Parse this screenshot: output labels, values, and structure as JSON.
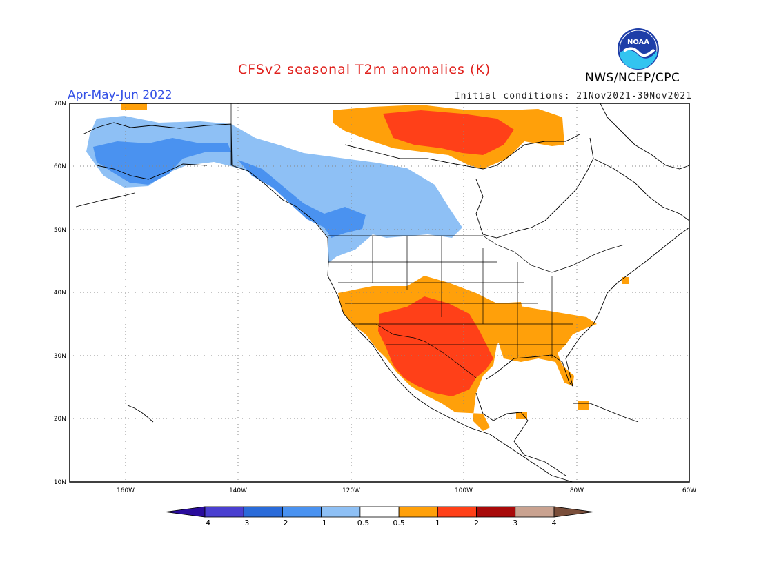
{
  "header": {
    "title": "CFSv2 seasonal T2m anomalies (K)",
    "season": "Apr-May-Jun 2022",
    "initial_conditions": "Initial conditions: 21Nov2021-30Nov2021",
    "organization": "NWS/NCEP/CPC",
    "logo_text": "NOAA"
  },
  "map": {
    "projection": "lat-lon",
    "lon_range": [
      -170,
      -60
    ],
    "lat_range": [
      10,
      70
    ],
    "lat_ticks": [
      {
        "value": 70,
        "label": "70N"
      },
      {
        "value": 60,
        "label": "60N"
      },
      {
        "value": 50,
        "label": "50N"
      },
      {
        "value": 40,
        "label": "40N"
      },
      {
        "value": 30,
        "label": "30N"
      },
      {
        "value": 20,
        "label": "20N"
      },
      {
        "value": 10,
        "label": "10N"
      }
    ],
    "lon_ticks": [
      {
        "value": -160,
        "label": "160W"
      },
      {
        "value": -140,
        "label": "140W"
      },
      {
        "value": -120,
        "label": "120W"
      },
      {
        "value": -100,
        "label": "100W"
      },
      {
        "value": -80,
        "label": "80W"
      },
      {
        "value": -60,
        "label": "60W"
      }
    ],
    "grid": "dotted"
  },
  "colorbar": {
    "labels": [
      "-4",
      "-3",
      "-2",
      "-1",
      "-0.5",
      "0.5",
      "1",
      "2",
      "3",
      "4"
    ],
    "colors": [
      "#2a0c9c",
      "#4a3fd0",
      "#2a6bd9",
      "#4a92f0",
      "#8ec0f5",
      "#ffffff",
      "#ffa00a",
      "#ff4018",
      "#a80a0a",
      "#c9a290",
      "#7a4e3a"
    ]
  },
  "anomaly_regions": [
    {
      "name": "alaska-cold",
      "class": "-1 to -0.5",
      "color": "#8ec0f5"
    },
    {
      "name": "alaska-colder",
      "class": "-2 to -1",
      "color": "#4a92f0"
    },
    {
      "name": "canada-west-cold",
      "class": "-1 to -0.5",
      "color": "#8ec0f5"
    },
    {
      "name": "bc-coast-colder",
      "class": "-2 to -1",
      "color": "#4a92f0"
    },
    {
      "name": "nunavut-warm",
      "class": "0.5 to 1",
      "color": "#ffa00a"
    },
    {
      "name": "nunavut-warmer",
      "class": "1 to 2",
      "color": "#ff4018"
    },
    {
      "name": "southwest-us-warm",
      "class": "0.5 to 1",
      "color": "#ffa00a"
    },
    {
      "name": "southwest-us-warmer",
      "class": "1 to 2",
      "color": "#ff4018"
    },
    {
      "name": "southeast-us-warm",
      "class": "0.5 to 1",
      "color": "#ffa00a"
    }
  ]
}
